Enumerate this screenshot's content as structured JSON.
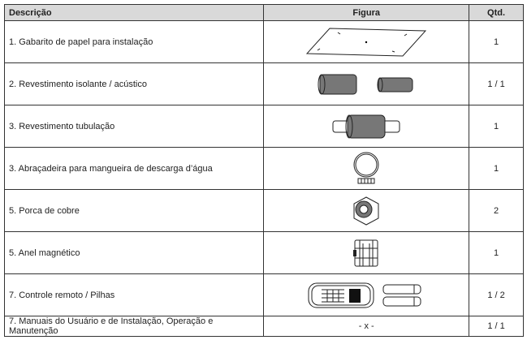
{
  "table": {
    "header": [
      "Descrição",
      "Figura",
      "Qtd."
    ],
    "rows": [
      {
        "description": "1. Gabarito de papel para instalação",
        "quantity": "1"
      },
      {
        "description": "2. Revestimento isolante / acústico",
        "quantity": "1 / 1"
      },
      {
        "description": "3. Revestimento tubulação",
        "quantity": "1"
      },
      {
        "description": "3. Abraçadeira para mangueira de descarga d’água",
        "quantity": "1"
      },
      {
        "description": "5. Porca de cobre",
        "quantity": "2"
      },
      {
        "description": "5. Anel magnético",
        "quantity": "1"
      },
      {
        "description": "7. Controle remoto / Pilhas",
        "quantity": "1 / 2"
      },
      {
        "description": "7. Manuais do Usuário e de Instalação, Operação e Manutenção",
        "figure": "- x -",
        "quantity": "1 / 1"
      }
    ]
  }
}
